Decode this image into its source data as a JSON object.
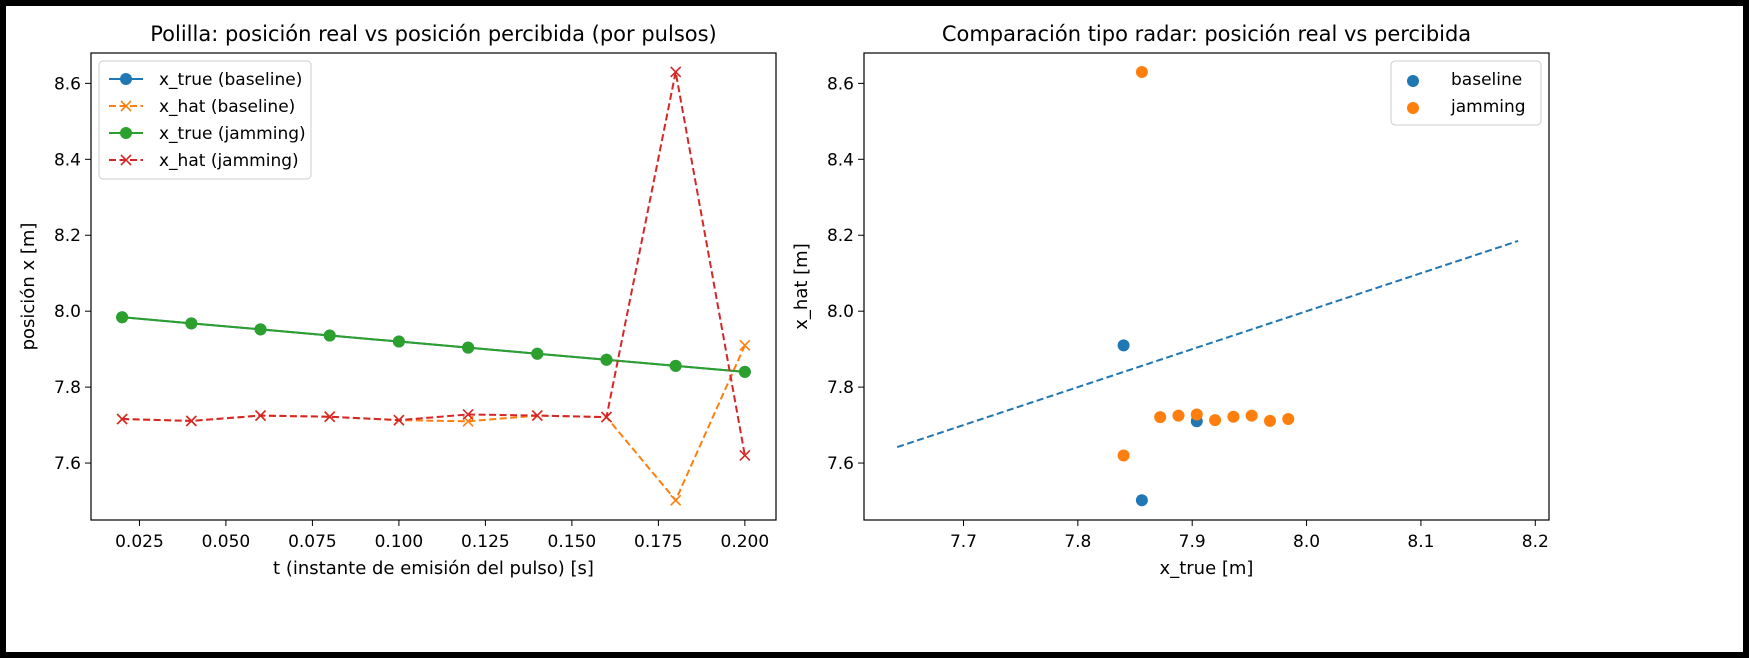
{
  "chart_data": [
    {
      "type": "line",
      "title": "Polilla: posición real vs posición percibida (por pulsos)",
      "xlabel": "t (instante de emisión del pulso) [s]",
      "ylabel": "posición x [m]",
      "xlim": [
        0.011,
        0.209
      ],
      "ylim": [
        7.45,
        8.68
      ],
      "xticks": [
        0.025,
        0.05,
        0.075,
        0.1,
        0.125,
        0.15,
        0.175,
        0.2
      ],
      "xtick_labels": [
        "0.025",
        "0.050",
        "0.075",
        "0.100",
        "0.125",
        "0.150",
        "0.175",
        "0.200"
      ],
      "yticks": [
        7.6,
        7.8,
        8.0,
        8.2,
        8.4,
        8.6
      ],
      "ytick_labels": [
        "7.6",
        "7.8",
        "8.0",
        "8.2",
        "8.4",
        "8.6"
      ],
      "legend_position": "top-left",
      "x": [
        0.02,
        0.04,
        0.06,
        0.08,
        0.1,
        0.12,
        0.14,
        0.16,
        0.18,
        0.2
      ],
      "series": [
        {
          "name": "x_true (baseline)",
          "color": "#1f77b4",
          "linestyle": "solid",
          "marker": "circle",
          "values": [
            7.984,
            7.968,
            7.952,
            7.936,
            7.92,
            7.904,
            7.888,
            7.872,
            7.856,
            7.84
          ]
        },
        {
          "name": "x_hat (baseline)",
          "color": "#ff7f0e",
          "linestyle": "dashed",
          "marker": "x",
          "values": [
            7.716,
            7.711,
            7.725,
            7.722,
            7.713,
            7.71,
            7.725,
            7.721,
            7.502,
            7.91
          ]
        },
        {
          "name": "x_true (jamming)",
          "color": "#2ca02c",
          "linestyle": "solid",
          "marker": "circle",
          "values": [
            7.984,
            7.968,
            7.952,
            7.936,
            7.92,
            7.904,
            7.888,
            7.872,
            7.856,
            7.84
          ]
        },
        {
          "name": "x_hat (jamming)",
          "color": "#d62728",
          "linestyle": "dashed",
          "marker": "x",
          "values": [
            7.716,
            7.711,
            7.725,
            7.722,
            7.713,
            7.728,
            7.725,
            7.721,
            8.63,
            7.62
          ]
        }
      ]
    },
    {
      "type": "scatter",
      "title": "Comparación tipo radar: posición real vs percibida",
      "xlabel": "x_true [m]",
      "ylabel": "x_hat [m]",
      "xlim": [
        7.613,
        8.212
      ],
      "ylim": [
        7.45,
        8.68
      ],
      "xticks": [
        7.7,
        7.8,
        7.9,
        8.0,
        8.1,
        8.2
      ],
      "xtick_labels": [
        "7.7",
        "7.8",
        "7.9",
        "8.0",
        "8.1",
        "8.2"
      ],
      "yticks": [
        7.6,
        7.8,
        8.0,
        8.2,
        8.4,
        8.6
      ],
      "ytick_labels": [
        "7.6",
        "7.8",
        "8.0",
        "8.2",
        "8.4",
        "8.6"
      ],
      "legend_position": "top-right",
      "reference_line": {
        "x": [
          7.642,
          8.185
        ],
        "y": [
          7.642,
          8.185
        ],
        "color": "#1f77b4",
        "linestyle": "dashed"
      },
      "series": [
        {
          "name": "baseline",
          "color": "#1f77b4",
          "x": [
            7.84,
            7.856,
            7.904
          ],
          "y": [
            7.91,
            7.502,
            7.71
          ]
        },
        {
          "name": "jamming",
          "color": "#ff7f0e",
          "x": [
            7.984,
            7.968,
            7.952,
            7.936,
            7.92,
            7.904,
            7.888,
            7.872,
            7.856,
            7.84
          ],
          "y": [
            7.716,
            7.711,
            7.725,
            7.722,
            7.713,
            7.728,
            7.725,
            7.721,
            8.63,
            7.62
          ]
        }
      ]
    }
  ]
}
